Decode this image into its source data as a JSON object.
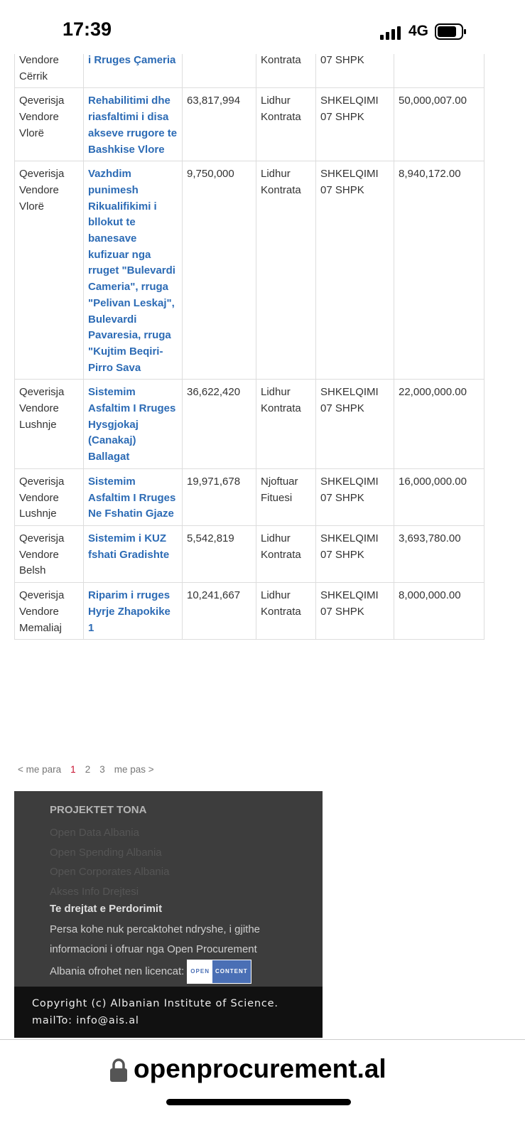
{
  "status_bar": {
    "time": "17:39",
    "network": "4G"
  },
  "table": {
    "rows": [
      [
        "Vendore Cërrik",
        "i Rruges Çameria",
        null,
        "Kontrata",
        "07 SHPK",
        null
      ],
      [
        "Qeverisja Vendore Vlorë",
        "Rehabilitimi dhe riasfaltimi i disa akseve rrugore te Bashkise Vlore",
        "63,817,994",
        "Lidhur Kontrata",
        "SHKELQIMI 07 SHPK",
        "50,000,007.00"
      ],
      [
        "Qeverisja Vendore Vlorë",
        "Vazhdim punimesh Rikualifikimi i bllokut te banesave kufizuar nga rruget \"Bulevardi Cameria\", rruga \"Pelivan Leskaj\", Bulevardi Pavaresia, rruga \"Kujtim Beqiri-Pirro Sava",
        "9,750,000",
        "Lidhur Kontrata",
        "SHKELQIMI 07 SHPK",
        "8,940,172.00"
      ],
      [
        "Qeverisja Vendore Lushnje",
        "Sistemim Asfaltim I Rruges Hysgjokaj (Canakaj) Ballagat",
        "36,622,420",
        "Lidhur Kontrata",
        "SHKELQIMI 07 SHPK",
        "22,000,000.00"
      ],
      [
        "Qeverisja Vendore Lushnje",
        "Sistemim Asfaltim I Rruges Ne Fshatin Gjaze",
        "19,971,678",
        "Njoftuar Fituesi",
        "SHKELQIMI 07 SHPK",
        "16,000,000.00"
      ],
      [
        "Qeverisja Vendore Belsh",
        "Sistemim i KUZ fshati Gradishte",
        "5,542,819",
        "Lidhur Kontrata",
        "SHKELQIMI 07 SHPK",
        "3,693,780.00"
      ],
      [
        "Qeverisja Vendore Memaliaj",
        "Riparim i rruges Hyrje Zhapokike 1",
        "10,241,667",
        "Lidhur Kontrata",
        "SHKELQIMI 07 SHPK",
        "8,000,000.00"
      ]
    ]
  },
  "pagination": {
    "previous": "< me para",
    "pages": [
      1,
      2,
      3
    ],
    "next": "me pas >"
  },
  "footer": {
    "heading": "PROJEKTET TONA",
    "links": [
      "Open Data Albania",
      "Open Spending Albania",
      "Open Corporates Albania",
      "Akses Info Drejtesi"
    ],
    "rights_title": "Te drejtat e Perdorimit",
    "rights_text": "Persa kohe nuk percaktohet ndryshe, i gjithe informacioni i ofruar nga Open Procurement Albania ofrohet nen licencat:",
    "badge": [
      "OPEN",
      "CONTENT"
    ],
    "copyright": "Copyright (c) Albanian Institute of Science.",
    "mail": "mailTo: info@ais.al"
  },
  "browser": {
    "url": "openprocurement.al"
  }
}
